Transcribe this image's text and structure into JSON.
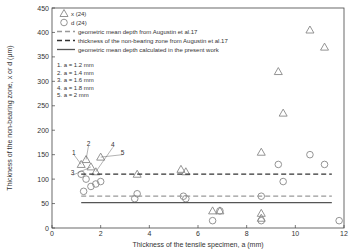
{
  "chart_data": {
    "type": "scatter",
    "x_label": "Thickness of the tensile specimen, a (mm)",
    "y_label": "Thickness of the non-bearing zone, x or d (μm)",
    "xlim": [
      0,
      12
    ],
    "xticks": [
      0,
      2,
      4,
      6,
      8,
      10,
      12
    ],
    "ylim": [
      0,
      450
    ],
    "yticks": [
      0,
      50,
      100,
      150,
      200,
      250,
      300,
      350,
      400,
      450
    ],
    "grid": false,
    "legend": "upper left",
    "series": [
      {
        "name": "x (24)",
        "type": "scatter",
        "marker": "triangle",
        "color": "#888888",
        "x": [
          1.2,
          1.4,
          1.6,
          1.8,
          2.0,
          3.5,
          5.3,
          5.5,
          6.6,
          6.9,
          8.6,
          8.6,
          8.6,
          9.3,
          9.5,
          10.6,
          11.2
        ],
        "values": [
          130,
          140,
          125,
          115,
          145,
          110,
          120,
          115,
          35,
          35,
          155,
          30,
          20,
          320,
          235,
          405,
          370
        ]
      },
      {
        "name": "d (24)",
        "type": "scatter",
        "marker": "circle",
        "color": "#888888",
        "x": [
          1.2,
          1.3,
          1.4,
          1.6,
          1.8,
          2.0,
          3.4,
          3.5,
          5.4,
          5.5,
          6.6,
          6.9,
          8.6,
          8.6,
          9.3,
          9.5,
          10.6,
          11.2,
          11.8
        ],
        "values": [
          110,
          75,
          100,
          85,
          90,
          95,
          60,
          70,
          65,
          60,
          15,
          35,
          65,
          15,
          130,
          95,
          150,
          130,
          15
        ]
      },
      {
        "name": "geometric mean depth from Augustin et al.17",
        "type": "line",
        "line_style": "dashed",
        "color": "#999999",
        "x": [
          1.2,
          11.5
        ],
        "values": [
          65,
          65
        ]
      },
      {
        "name": "thickness of the non-bearing zone from Augustin et al.17",
        "type": "line",
        "line_style": "dashed",
        "color": "#333333",
        "x": [
          1.2,
          11.5
        ],
        "values": [
          110,
          110
        ]
      },
      {
        "name": "geometric mean depth calculated in the present work",
        "type": "line",
        "line_style": "solid",
        "color": "#555555",
        "x": [
          1.2,
          11.5
        ],
        "values": [
          52,
          52
        ]
      }
    ],
    "annotations": [
      {
        "text": "1. a = 1.2 mm"
      },
      {
        "text": "1.4 mm",
        "prefix": "2. a = "
      }
    ],
    "notes": [
      "1. a = 1.2 mm",
      "2. a = 1.4 mm",
      "3. a = 1.6 mm",
      "4. a = 1.8 mm",
      "5. a = 2 mm"
    ],
    "point_labels": [
      {
        "text": "1",
        "x": 0.9,
        "y": 150,
        "target_x": 1.2,
        "target_y": 130
      },
      {
        "text": "2",
        "x": 1.5,
        "y": 168,
        "target_x": 1.4,
        "target_y": 140
      },
      {
        "text": "3",
        "x": 0.85,
        "y": 108,
        "target_x": 1.6,
        "target_y": 125
      },
      {
        "text": "4",
        "x": 2.5,
        "y": 165,
        "target_x": 1.8,
        "target_y": 115
      },
      {
        "text": "5",
        "x": 2.9,
        "y": 150,
        "target_x": 2.0,
        "target_y": 145
      }
    ]
  }
}
